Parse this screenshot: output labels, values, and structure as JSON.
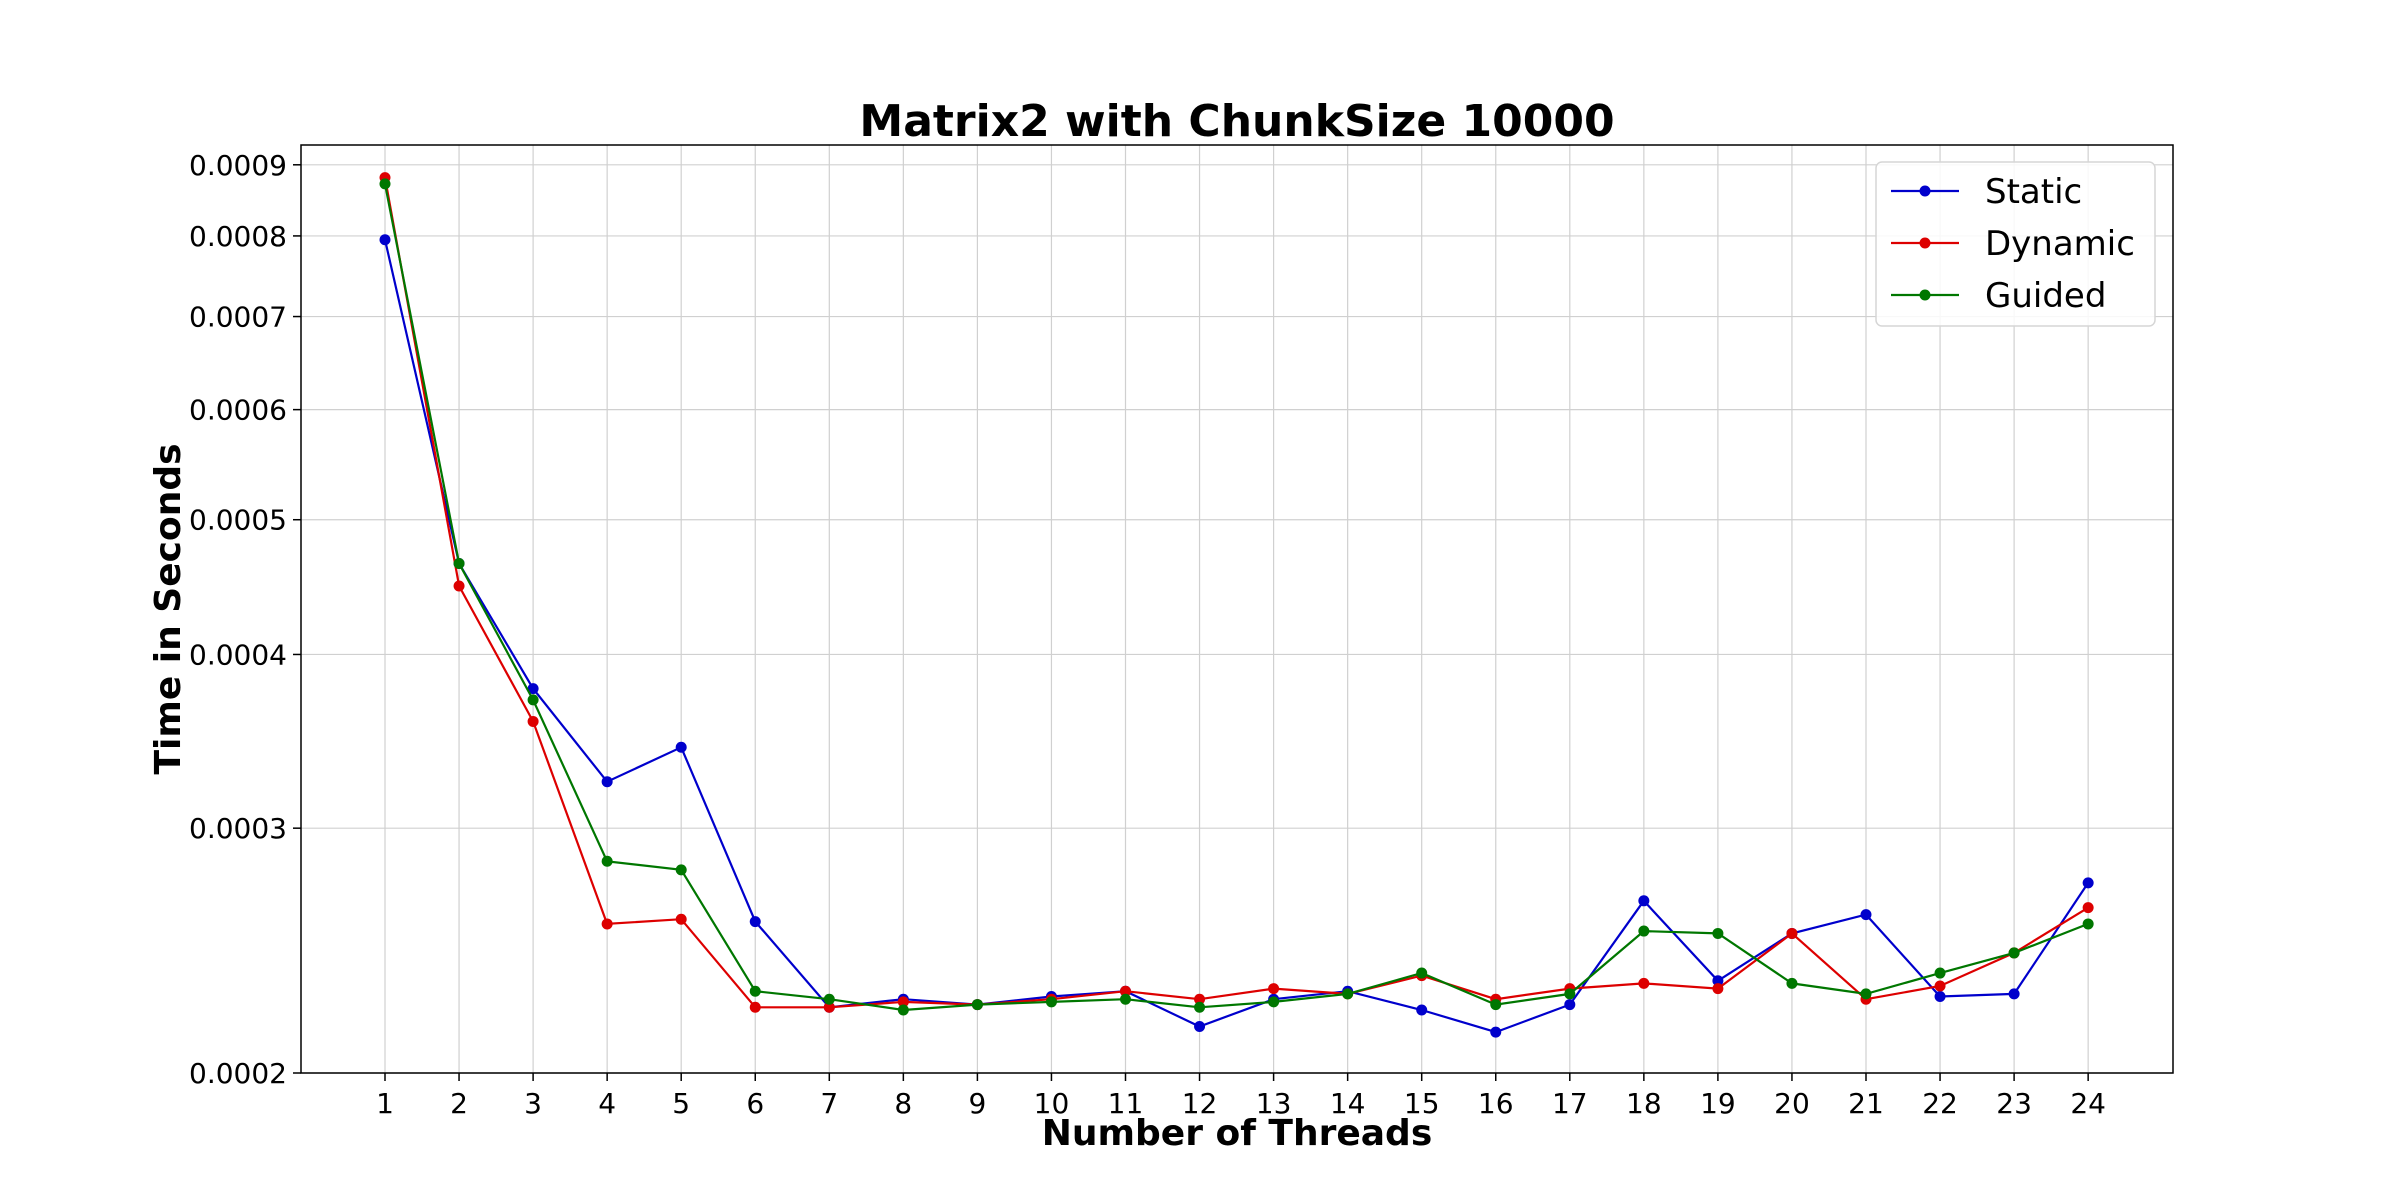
{
  "chart_data": {
    "type": "line",
    "title": "Matrix2 with ChunkSize 10000",
    "xlabel": "Number of Threads",
    "ylabel": "Time in Seconds",
    "yscale": "log",
    "ylim": [
      0.0002,
      0.00093
    ],
    "xlim": [
      0,
      25
    ],
    "grid": true,
    "legend_position": "top-right",
    "x": [
      1,
      2,
      3,
      4,
      5,
      6,
      7,
      8,
      9,
      10,
      11,
      12,
      13,
      14,
      15,
      16,
      17,
      18,
      19,
      20,
      21,
      22,
      23,
      24
    ],
    "x_ticks": [
      "1",
      "2",
      "3",
      "4",
      "5",
      "6",
      "7",
      "8",
      "9",
      "10",
      "11",
      "12",
      "13",
      "14",
      "15",
      "16",
      "17",
      "18",
      "19",
      "20",
      "21",
      "22",
      "23",
      "24"
    ],
    "y_ticks": [
      {
        "value": 0.0002,
        "label": "0.0002"
      },
      {
        "value": 0.0003,
        "label": "0.0003"
      },
      {
        "value": 0.0004,
        "label": "0.0004"
      },
      {
        "value": 0.0005,
        "label": "0.0005"
      },
      {
        "value": 0.0006,
        "label": "0.0006"
      },
      {
        "value": 0.0007,
        "label": "0.0007"
      },
      {
        "value": 0.0008,
        "label": "0.0008"
      },
      {
        "value": 0.0009,
        "label": "0.0009"
      }
    ],
    "series": [
      {
        "name": "Static",
        "color": "#0000cc",
        "values": [
          0.000795,
          0.000465,
          0.000378,
          0.000324,
          0.000343,
          0.000257,
          0.000223,
          0.000226,
          0.000224,
          0.000227,
          0.000229,
          0.000216,
          0.000226,
          0.000229,
          0.000222,
          0.000214,
          0.000224,
          0.000266,
          0.000233,
          0.000252,
          0.00026,
          0.000227,
          0.000228,
          0.000274
        ]
      },
      {
        "name": "Dynamic",
        "color": "#dd0000",
        "values": [
          0.000881,
          0.000448,
          0.000358,
          0.000256,
          0.000258,
          0.000223,
          0.000223,
          0.000225,
          0.000224,
          0.000226,
          0.000229,
          0.000226,
          0.00023,
          0.000228,
          0.000235,
          0.000226,
          0.00023,
          0.000232,
          0.00023,
          0.000252,
          0.000226,
          0.000231,
          0.000244,
          0.000263
        ]
      },
      {
        "name": "Guided",
        "color": "#007700",
        "values": [
          0.000872,
          0.000465,
          0.000371,
          0.000284,
          0.00028,
          0.000229,
          0.000226,
          0.000222,
          0.000224,
          0.000225,
          0.000226,
          0.000223,
          0.000225,
          0.000228,
          0.000236,
          0.000224,
          0.000228,
          0.000253,
          0.000252,
          0.000232,
          0.000228,
          0.000236,
          0.000244,
          0.000256
        ]
      }
    ]
  }
}
